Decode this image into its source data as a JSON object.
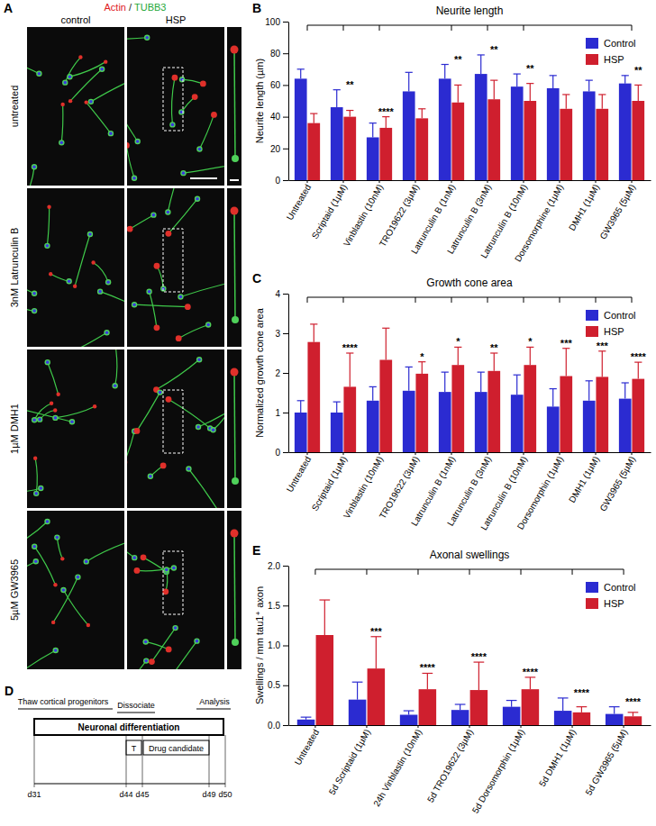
{
  "chart_data": [
    {
      "type": "bar",
      "panel_label": "B",
      "title": "Neurite length",
      "y_label": "Neurite length (µm)",
      "categories": [
        "Untreated",
        "Scriptaid (1µM)",
        "Vinblastin (10nM)",
        "TRO19622 (3µM)",
        "Latrunculin B (1nM)",
        "Latrunculin B (3nM)",
        "Latrunculin B (10nM)",
        "Dorsomorphine (1µM)",
        "DMH1 (1µM)",
        "GW3965 (5µM)"
      ],
      "series": [
        {
          "name": "Control",
          "color": "#2b2bd1",
          "values": [
            64,
            46,
            27,
            56,
            64,
            67,
            59,
            58,
            56,
            61
          ],
          "errors": [
            6,
            11,
            9,
            12,
            9,
            12,
            8,
            8,
            7,
            5
          ]
        },
        {
          "name": "HSP",
          "color": "#cf1f2e",
          "values": [
            36,
            40,
            33,
            39,
            49,
            51,
            50,
            45,
            45,
            50
          ],
          "errors": [
            6,
            4,
            7,
            6,
            11,
            12,
            11,
            9,
            9,
            10
          ]
        }
      ],
      "significance": [
        null,
        "**",
        "****",
        null,
        "**",
        "**",
        "**",
        null,
        null,
        "**"
      ],
      "ylim": [
        0,
        100
      ],
      "yticks": [
        0,
        20,
        40,
        60,
        80,
        100
      ],
      "legend": "top-right"
    },
    {
      "type": "bar",
      "panel_label": "C",
      "title": "Growth cone area",
      "y_label": "Normalized growth cone area",
      "categories": [
        "Untreated",
        "Scriptaid (1µM)",
        "Vinblastin (10nM)",
        "TRO19622 (3µM)",
        "Latrunculin B (1nM)",
        "Latrunculin B (3nM)",
        "Latrunculin B (10nM)",
        "Dorsomorphin (1µM)",
        "DMH1 (1µM)",
        "GW3965 (5µM)"
      ],
      "series": [
        {
          "name": "Control",
          "color": "#2b2bd1",
          "values": [
            1.0,
            1.0,
            1.3,
            1.55,
            1.52,
            1.52,
            1.45,
            1.15,
            1.3,
            1.35
          ],
          "errors": [
            0.3,
            0.27,
            0.35,
            0.6,
            0.5,
            0.5,
            0.5,
            0.45,
            0.5,
            0.4
          ]
        },
        {
          "name": "HSP",
          "color": "#cf1f2e",
          "values": [
            2.78,
            1.65,
            2.33,
            1.98,
            2.2,
            2.05,
            2.2,
            1.92,
            1.9,
            1.85
          ],
          "errors": [
            0.45,
            0.85,
            0.8,
            0.3,
            0.45,
            0.45,
            0.45,
            0.7,
            0.65,
            0.42
          ]
        }
      ],
      "significance": [
        null,
        "****",
        null,
        "*",
        "*",
        "**",
        "*",
        "***",
        "***",
        "****"
      ],
      "ylim": [
        0,
        4
      ],
      "yticks": [
        0,
        1,
        2,
        3,
        4
      ],
      "legend": "top-right"
    },
    {
      "type": "bar",
      "panel_label": "E",
      "title": "Axonal swellings",
      "y_label": "Swellings / mm tau1⁺ axon",
      "categories": [
        "Untreated",
        "5d Scriptaid (1µM)",
        "24h Vinblastin (10nM)",
        "5d TRO19622 (3µM)",
        "5d Dorsomorphin (1µM)",
        "5d DMH1 (1µM)",
        "5d GW3965 (5µM)"
      ],
      "series": [
        {
          "name": "Control",
          "color": "#2b2bd1",
          "values": [
            0.07,
            0.32,
            0.13,
            0.19,
            0.23,
            0.18,
            0.14
          ],
          "errors": [
            0.03,
            0.22,
            0.05,
            0.07,
            0.08,
            0.16,
            0.09
          ]
        },
        {
          "name": "HSP",
          "color": "#cf1f2e",
          "values": [
            1.13,
            0.71,
            0.45,
            0.44,
            0.45,
            0.16,
            0.11
          ],
          "errors": [
            0.44,
            0.4,
            0.2,
            0.35,
            0.15,
            0.07,
            0.05
          ]
        }
      ],
      "significance": [
        null,
        "***",
        "****",
        "****",
        "****",
        "****",
        "****"
      ],
      "ylim": [
        0,
        2
      ],
      "yticks": [
        {
          "value": 0,
          "label": "0.0"
        },
        0.5,
        {
          "value": 1,
          "label": "1.0"
        },
        1.5,
        {
          "value": 2,
          "label": "2.0"
        }
      ],
      "legend": "top-right"
    }
  ],
  "image_panel": {
    "panel_label": "A",
    "title_parts": [
      {
        "text": "Actin",
        "color": "#e0201c"
      },
      {
        "text": " / ",
        "color": "#222222"
      },
      {
        "text": "TUBB3",
        "color": "#1fa83a"
      }
    ],
    "columns": [
      "control",
      "HSP"
    ],
    "rows": [
      "untreated",
      "3nM Latrunculin B",
      "1µM DMH1",
      "5µM GW3965"
    ]
  },
  "timeline": {
    "panel_label": "D",
    "top_labels": [
      "Thaw cortical progenitors",
      "Dissociate",
      "Analysis"
    ],
    "phases": [
      "Neuronal differentiation",
      "T",
      "Drug candidate"
    ],
    "days": [
      "d31",
      "d44",
      "d45",
      "d49",
      "d50"
    ]
  }
}
